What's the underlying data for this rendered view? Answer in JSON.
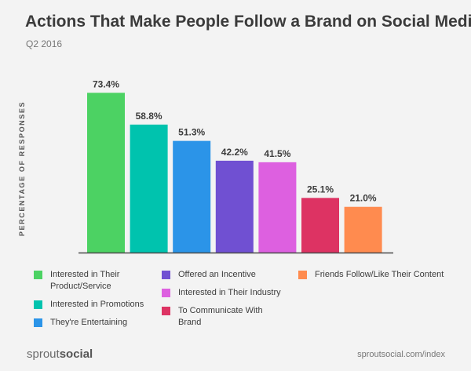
{
  "chart_data": {
    "type": "bar",
    "title": "Actions That Make People Follow a Brand on Social Media",
    "subtitle": "Q2 2016",
    "ylabel": "PERCENTAGE OF RESPONSES",
    "ylim": [
      0,
      80
    ],
    "grid": false,
    "legend_position": "bottom",
    "categories": [
      "Interested in Their Product/Service",
      "Interested in Promotions",
      "They're Entertaining",
      "Offered an Incentive",
      "Interested in Their Industry",
      "To Communicate With Brand",
      "Friends Follow/Like Their Content"
    ],
    "values": [
      73.4,
      58.8,
      51.3,
      42.2,
      41.5,
      25.1,
      21.0
    ],
    "value_labels": [
      "73.4%",
      "58.8%",
      "51.3%",
      "42.2%",
      "41.5%",
      "25.1%",
      "21.0%"
    ],
    "colors": [
      "#4cd263",
      "#00c3ae",
      "#2b94e8",
      "#7050d2",
      "#dd60e0",
      "#dd3363",
      "#ff8b4f"
    ]
  },
  "legend": [
    {
      "label": "Interested in Their Product/Service",
      "color": "#4cd263"
    },
    {
      "label": "Interested in Promotions",
      "color": "#00c3ae"
    },
    {
      "label": "They're Entertaining",
      "color": "#2b94e8"
    },
    {
      "label": "Offered an Incentive",
      "color": "#7050d2"
    },
    {
      "label": "Interested in Their Industry",
      "color": "#dd60e0"
    },
    {
      "label": "To Communicate With Brand",
      "color": "#dd3363"
    },
    {
      "label": "Friends Follow/Like Their Content",
      "color": "#ff8b4f"
    }
  ],
  "footer": {
    "brand_part1": "sprout",
    "brand_part2": "social",
    "url": "sproutsocial.com/index"
  }
}
